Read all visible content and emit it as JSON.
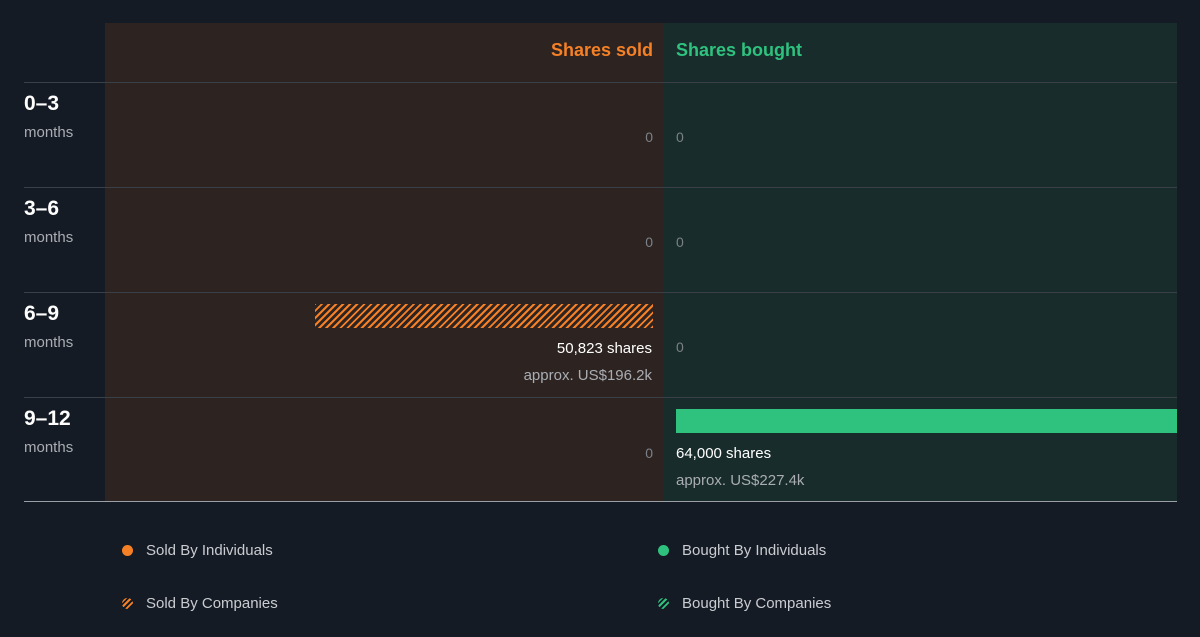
{
  "colors": {
    "sold": "#f58025",
    "bought": "#2ec27e",
    "sold_panel": "#2d2422",
    "bought_panel": "#182c2b",
    "background": "#151b24"
  },
  "chart_data": {
    "type": "bar",
    "headers": {
      "sold": "Shares sold",
      "bought": "Shares bought"
    },
    "rows": [
      {
        "range": "0–3",
        "unit": "months",
        "sold": {
          "shares": 0,
          "zero_label": "0"
        },
        "bought": {
          "shares": 0,
          "zero_label": "0"
        }
      },
      {
        "range": "3–6",
        "unit": "months",
        "sold": {
          "shares": 0,
          "zero_label": "0"
        },
        "bought": {
          "shares": 0,
          "zero_label": "0"
        }
      },
      {
        "range": "6–9",
        "unit": "months",
        "sold": {
          "shares": 50823,
          "type": "companies",
          "shares_label": "50,823 shares",
          "approx_label": "approx. US$196.2k"
        },
        "bought": {
          "shares": 0,
          "zero_label": "0"
        }
      },
      {
        "range": "9–12",
        "unit": "months",
        "sold": {
          "shares": 0,
          "zero_label": "0"
        },
        "bought": {
          "shares": 64000,
          "type": "individuals",
          "shares_label": "64,000 shares",
          "approx_label": "approx. US$227.4k"
        }
      }
    ],
    "legend": [
      {
        "label": "Sold By Individuals",
        "marker": "dot",
        "side": "sold"
      },
      {
        "label": "Bought By Individuals",
        "marker": "dot",
        "side": "bought"
      },
      {
        "label": "Sold By Companies",
        "marker": "hatch",
        "side": "sold"
      },
      {
        "label": "Bought By Companies",
        "marker": "hatch",
        "side": "bought"
      }
    ]
  }
}
